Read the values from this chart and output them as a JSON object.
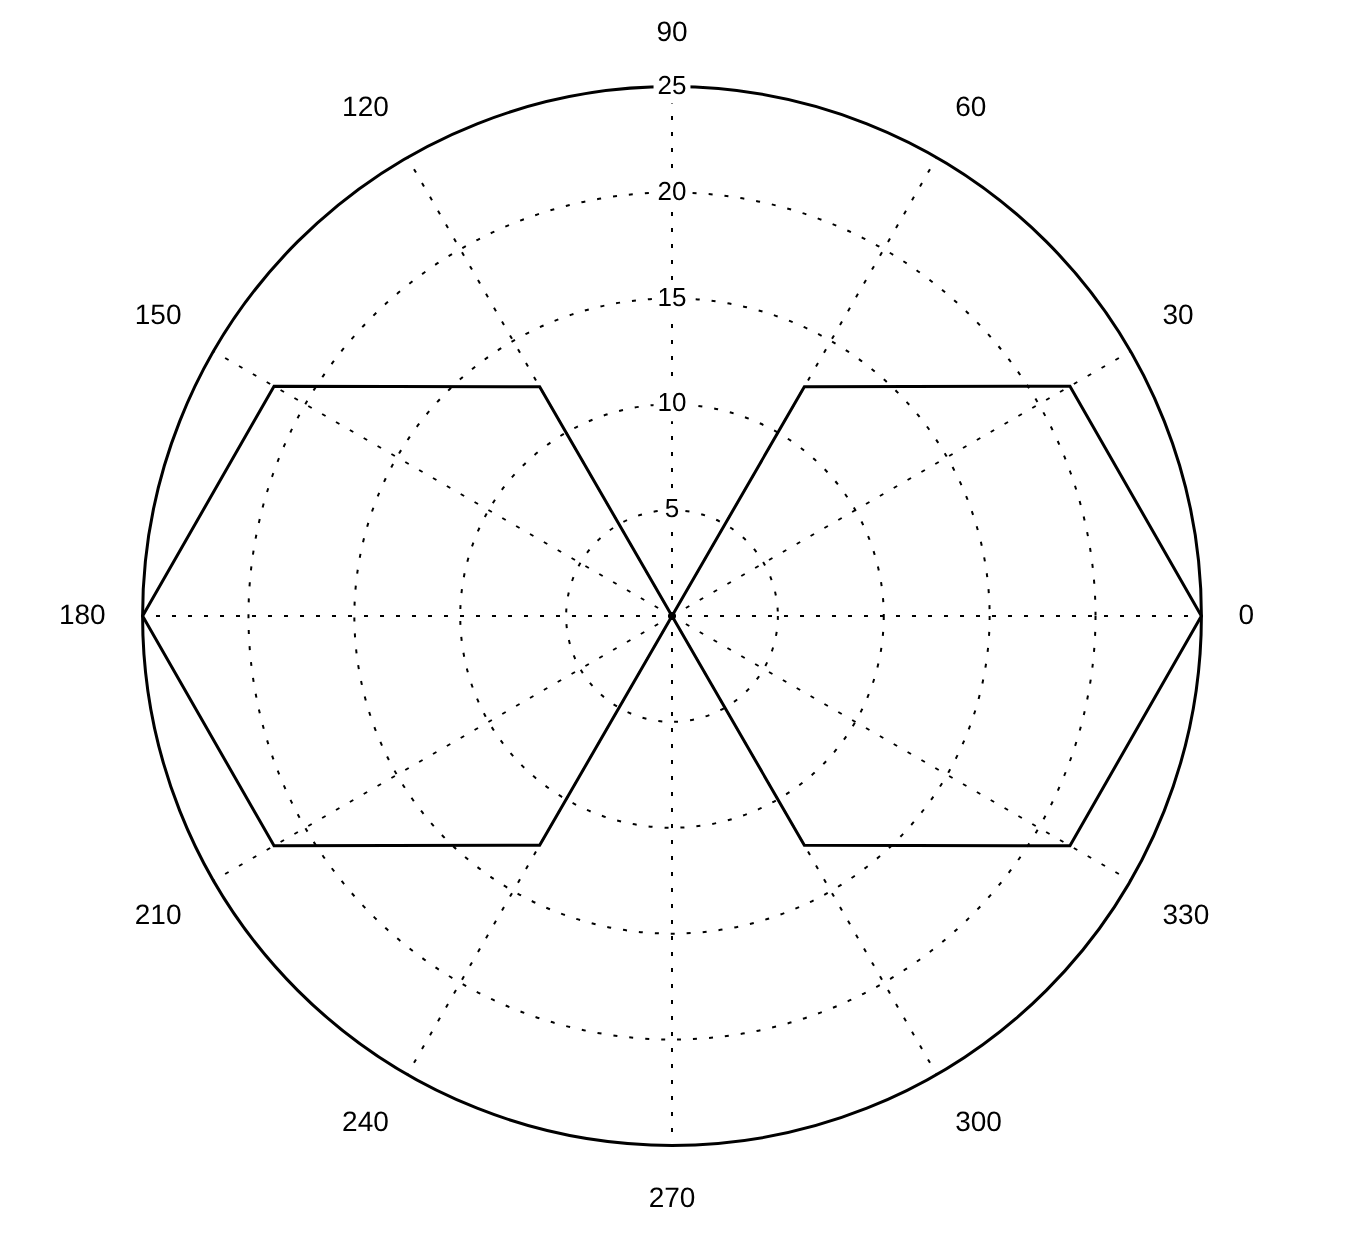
{
  "chart_data": {
    "type": "radar",
    "categories": [
      "90",
      "60",
      "30",
      "0",
      "330",
      "300",
      "270",
      "240",
      "210",
      "180",
      "150",
      "120"
    ],
    "series": [
      {
        "color": "#000000",
        "values": [
          0,
          12.5,
          21.7,
          25,
          21.7,
          12.5,
          0,
          12.5,
          21.7,
          25,
          21.7,
          12.5
        ]
      }
    ],
    "ylim": [
      0,
      25
    ],
    "yticks": [
      5,
      10,
      15,
      20,
      25
    ],
    "grid": true
  }
}
